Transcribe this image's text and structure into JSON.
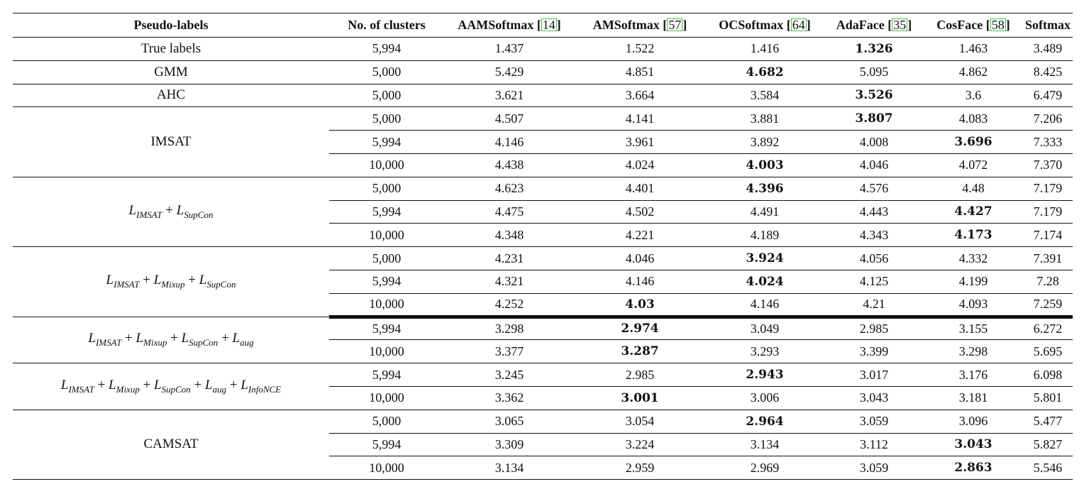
{
  "table": {
    "header": {
      "pseudo": "Pseudo-labels",
      "clusters": "No. of clusters",
      "cols": [
        {
          "name": "AAMSoftmax",
          "open": "[",
          "ref": "14",
          "close": "]"
        },
        {
          "name": "AMSoftmax",
          "open": "[",
          "ref": "57",
          "close": "]"
        },
        {
          "name": "OCSoftmax",
          "open": "[",
          "ref": "64",
          "close": "]"
        },
        {
          "name": "AdaFace",
          "open": "[",
          "ref": "35",
          "close": "]"
        },
        {
          "name": "CosFace",
          "open": "[",
          "ref": "58",
          "close": "]"
        },
        {
          "name": "Softmax",
          "open": "",
          "ref": "",
          "close": ""
        }
      ]
    },
    "groups": [
      {
        "label": "True labels",
        "math": false,
        "rows": [
          {
            "clusters": "5,994",
            "values": [
              "1.437",
              "1.522",
              "1.416",
              "1.326",
              "1.463",
              "3.489"
            ],
            "bold": 3
          }
        ]
      },
      {
        "label": "GMM",
        "math": false,
        "rows": [
          {
            "clusters": "5,000",
            "values": [
              "5.429",
              "4.851",
              "4.682",
              "5.095",
              "4.862",
              "8.425"
            ],
            "bold": 2
          }
        ]
      },
      {
        "label": "AHC",
        "math": false,
        "rows": [
          {
            "clusters": "5,000",
            "values": [
              "3.621",
              "3.664",
              "3.584",
              "3.526",
              "3.6",
              "6.479"
            ],
            "bold": 3
          }
        ]
      },
      {
        "label": "IMSAT",
        "math": false,
        "rows": [
          {
            "clusters": "5,000",
            "values": [
              "4.507",
              "4.141",
              "3.881",
              "3.807",
              "4.083",
              "7.206"
            ],
            "bold": 3
          },
          {
            "clusters": "5,994",
            "values": [
              "4.146",
              "3.961",
              "3.892",
              "4.008",
              "3.696",
              "7.333"
            ],
            "bold": 4
          },
          {
            "clusters": "10,000",
            "values": [
              "4.438",
              "4.024",
              "4.003",
              "4.046",
              "4.072",
              "7.370"
            ],
            "bold": 2
          }
        ]
      },
      {
        "label": "L_IMSAT + L_SupCon",
        "math": true,
        "terms": [
          {
            "base": "L",
            "sub": "IMSAT"
          },
          {
            "base": "L",
            "sub": "SupCon"
          }
        ],
        "rows": [
          {
            "clusters": "5,000",
            "values": [
              "4.623",
              "4.401",
              "4.396",
              "4.576",
              "4.48",
              "7.179"
            ],
            "bold": 2
          },
          {
            "clusters": "5,994",
            "values": [
              "4.475",
              "4.502",
              "4.491",
              "4.443",
              "4.427",
              "7.179"
            ],
            "bold": 4
          },
          {
            "clusters": "10,000",
            "values": [
              "4.348",
              "4.221",
              "4.189",
              "4.343",
              "4.173",
              "7.174"
            ],
            "bold": 4
          }
        ]
      },
      {
        "label": "L_IMSAT + L_Mixup + L_SupCon",
        "math": true,
        "thick_after": true,
        "terms": [
          {
            "base": "L",
            "sub": "IMSAT"
          },
          {
            "base": "L",
            "sub": "Mixup"
          },
          {
            "base": "L",
            "sub": "SupCon"
          }
        ],
        "rows": [
          {
            "clusters": "5,000",
            "values": [
              "4.231",
              "4.046",
              "3.924",
              "4.056",
              "4.332",
              "7.391"
            ],
            "bold": 2
          },
          {
            "clusters": "5,994",
            "values": [
              "4.321",
              "4.146",
              "4.024",
              "4.125",
              "4.199",
              "7.28"
            ],
            "bold": 2
          },
          {
            "clusters": "10,000",
            "values": [
              "4.252",
              "4.03",
              "4.146",
              "4.21",
              "4.093",
              "7.259"
            ],
            "bold": 1
          }
        ]
      },
      {
        "label": "L_IMSAT + L_Mixup + L_SupCon + L_aug",
        "math": true,
        "terms": [
          {
            "base": "L",
            "sub": "IMSAT"
          },
          {
            "base": "L",
            "sub": "Mixup"
          },
          {
            "base": "L",
            "sub": "SupCon"
          },
          {
            "base": "L",
            "sub": "aug"
          }
        ],
        "rows": [
          {
            "clusters": "5,994",
            "values": [
              "3.298",
              "2.974",
              "3.049",
              "2.985",
              "3.155",
              "6.272"
            ],
            "bold": 1
          },
          {
            "clusters": "10,000",
            "values": [
              "3.377",
              "3.287",
              "3.293",
              "3.399",
              "3.298",
              "5.695"
            ],
            "bold": 1
          }
        ]
      },
      {
        "label": "L_IMSAT + L_Mixup + L_SupCon + L_aug + L_InfoNCE",
        "math": true,
        "terms": [
          {
            "base": "L",
            "sub": "IMSAT"
          },
          {
            "base": "L",
            "sub": "Mixup"
          },
          {
            "base": "L",
            "sub": "SupCon"
          },
          {
            "base": "L",
            "sub": "aug"
          },
          {
            "base": "L",
            "sub": "InfoNCE"
          }
        ],
        "rows": [
          {
            "clusters": "5,994",
            "values": [
              "3.245",
              "2.985",
              "2.943",
              "3.017",
              "3.176",
              "6.098"
            ],
            "bold": 2
          },
          {
            "clusters": "10,000",
            "values": [
              "3.362",
              "3.001",
              "3.006",
              "3.043",
              "3.181",
              "5.801"
            ],
            "bold": 1
          }
        ]
      },
      {
        "label": "CAMSAT",
        "math": false,
        "rows": [
          {
            "clusters": "5,000",
            "values": [
              "3.065",
              "3.054",
              "2.964",
              "3.059",
              "3.096",
              "5.477"
            ],
            "bold": 2
          },
          {
            "clusters": "5,994",
            "values": [
              "3.309",
              "3.224",
              "3.134",
              "3.112",
              "3.043",
              "5.827"
            ],
            "bold": 4
          },
          {
            "clusters": "10,000",
            "values": [
              "3.134",
              "2.959",
              "2.969",
              "3.059",
              "2.863",
              "5.546"
            ],
            "bold": 4
          }
        ]
      }
    ]
  }
}
